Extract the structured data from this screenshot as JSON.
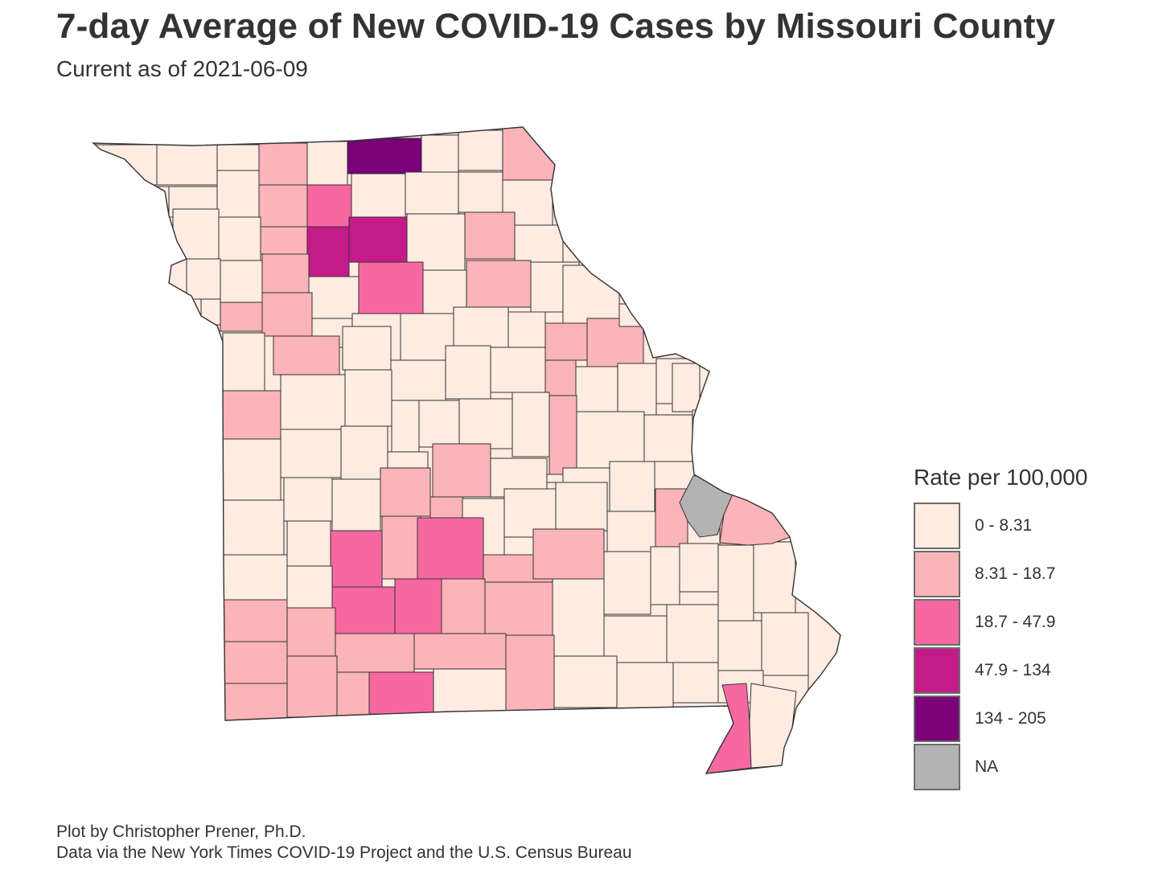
{
  "title": "7-day Average of New COVID-19 Cases by Missouri County",
  "subtitle": "Current as of 2021-06-09",
  "caption": {
    "line1": "Plot by Christopher Prener, Ph.D.",
    "line2": "Data via the New York Times COVID-19 Project and the U.S. Census Bureau"
  },
  "legend": {
    "title": "Rate per 100,000",
    "items": [
      {
        "label": "0 - 8.31",
        "color": "#feebe2"
      },
      {
        "label": "8.31 - 18.7",
        "color": "#fbb4b9"
      },
      {
        "label": "18.7 - 47.9",
        "color": "#f768a1"
      },
      {
        "label": "47.9 - 134",
        "color": "#c51b8a"
      },
      {
        "label": "134 - 205",
        "color": "#7a0177"
      },
      {
        "label": "NA",
        "color": "#b3b3b3"
      }
    ]
  },
  "map": {
    "region": "Missouri",
    "border_color": "#333333"
  }
}
